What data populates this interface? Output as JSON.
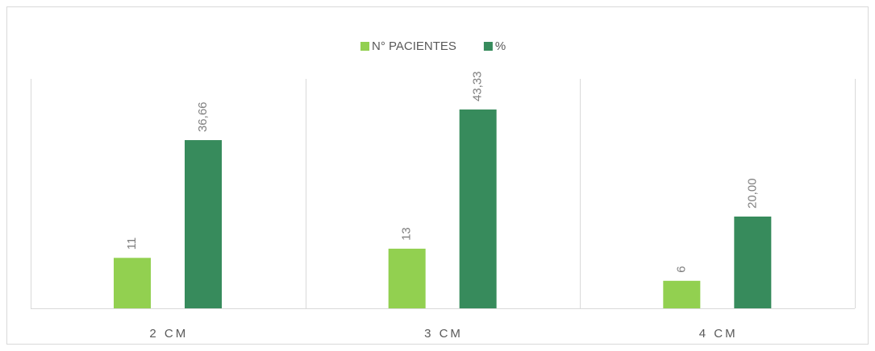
{
  "chart_data": {
    "type": "bar",
    "categories": [
      "2 CM",
      "3 CM",
      "4 CM"
    ],
    "series": [
      {
        "name": "N° PACIENTES",
        "color": "#92d050",
        "values": [
          11,
          13,
          6
        ]
      },
      {
        "name": "%",
        "color": "#378b5c",
        "values": [
          36.66,
          43.33,
          20.0
        ],
        "value_labels": [
          "36,66",
          "43,33",
          "20,00"
        ]
      }
    ],
    "legend": "top"
  }
}
